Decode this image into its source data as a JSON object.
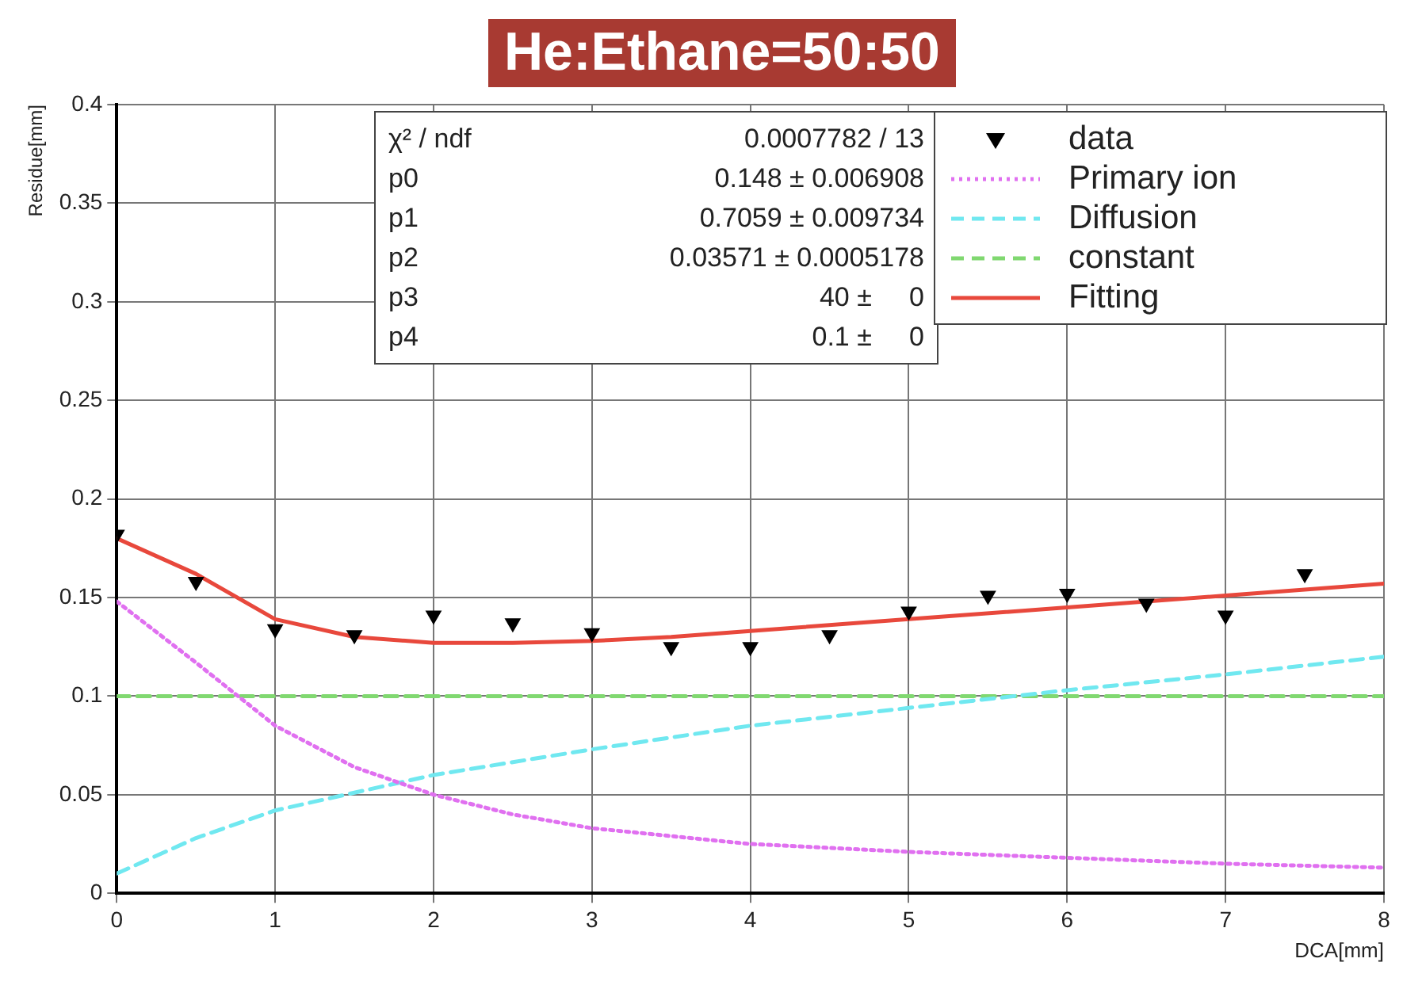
{
  "chart_data": {
    "type": "line",
    "title": "He:Ethane=50:50",
    "xlabel": "DCA[mm]",
    "ylabel": "Residue[mm]",
    "xlim": [
      0,
      8
    ],
    "xticks": [
      0,
      1,
      2,
      3,
      4,
      5,
      6,
      7,
      8
    ],
    "ylim": [
      0,
      0.4
    ],
    "yticks": [
      0,
      0.05,
      0.1,
      0.15,
      0.2,
      0.25,
      0.3,
      0.35,
      0.4
    ],
    "grid": true,
    "legend": "top right",
    "annotations": [
      "χ² / ndf",
      "0.0007782 / 13",
      "p0",
      "0.148 ± 0.006908",
      "p1",
      "0.7059 ± 0.009734",
      "p2",
      "0.03571 ± 0.0005178",
      "p3",
      "40 ±     0",
      "p4",
      "0.1 ±     0"
    ],
    "series": [
      {
        "name": "data",
        "type": "scatter",
        "color": "#000000",
        "marker": "triangle",
        "x": [
          0,
          0.5,
          1,
          1.5,
          2,
          2.5,
          3,
          3.5,
          4,
          4.5,
          5,
          5.5,
          6,
          6.5,
          7,
          7.5
        ],
        "values": [
          0.182,
          0.158,
          0.134,
          0.131,
          0.141,
          0.137,
          0.132,
          0.125,
          0.125,
          0.131,
          0.143,
          0.151,
          0.152,
          0.147,
          0.141,
          0.162
        ]
      },
      {
        "name": "Primary ion",
        "color": "#e070f0",
        "line_style": "dotted",
        "x": [
          0,
          0.5,
          1,
          1.5,
          2,
          2.5,
          3,
          3.5,
          4,
          5,
          6,
          7,
          8
        ],
        "values": [
          0.148,
          0.117,
          0.085,
          0.064,
          0.05,
          0.04,
          0.033,
          0.029,
          0.025,
          0.021,
          0.018,
          0.015,
          0.013
        ]
      },
      {
        "name": "Diffusion",
        "color": "#70e8f0",
        "line_style": "dashed",
        "x": [
          0,
          0.5,
          1,
          1.5,
          2,
          3,
          4,
          5,
          6,
          7,
          8
        ],
        "values": [
          0.01,
          0.028,
          0.042,
          0.051,
          0.06,
          0.073,
          0.085,
          0.094,
          0.103,
          0.111,
          0.12
        ]
      },
      {
        "name": "constant",
        "color": "#80d870",
        "line_style": "dashed",
        "x": [
          0,
          8
        ],
        "values": [
          0.1,
          0.1
        ]
      },
      {
        "name": "Fitting",
        "color": "#e8483c",
        "line_style": "solid",
        "x": [
          0,
          0.5,
          1,
          1.5,
          2,
          2.5,
          3,
          3.5,
          4,
          5,
          6,
          7,
          8
        ],
        "values": [
          0.18,
          0.162,
          0.139,
          0.13,
          0.127,
          0.127,
          0.128,
          0.13,
          0.133,
          0.139,
          0.145,
          0.151,
          0.157
        ]
      }
    ]
  }
}
